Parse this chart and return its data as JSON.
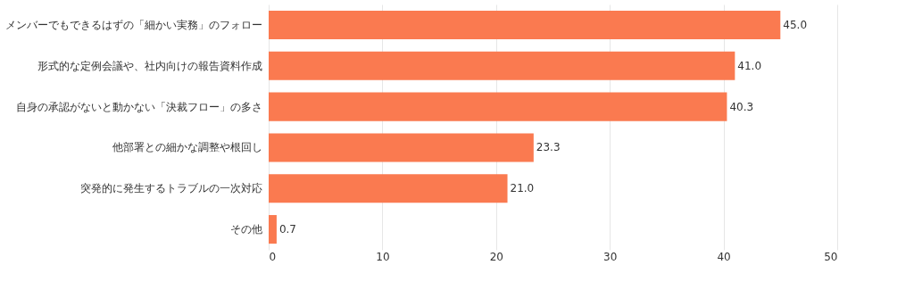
{
  "chart_data": {
    "type": "bar",
    "orientation": "horizontal",
    "categories": [
      "メンバーでもできるはずの「細かい実務」のフォロー",
      "形式的な定例会議や、社内向けの報告資料作成",
      "自身の承認がないと動かない「決裁フロー」の多さ",
      "他部署との細かな調整や根回し",
      "突発的に発生するトラブルの一次対応",
      "その他"
    ],
    "values": [
      45.0,
      41.0,
      40.3,
      23.3,
      21.0,
      0.7
    ],
    "value_labels": [
      "45.0",
      "41.0",
      "40.3",
      "23.3",
      "21.0",
      "0.7"
    ],
    "color": "#fa7a50",
    "xlim": [
      0,
      50
    ],
    "xticks": [
      0,
      10,
      20,
      30,
      40,
      50
    ],
    "grid": "x"
  }
}
